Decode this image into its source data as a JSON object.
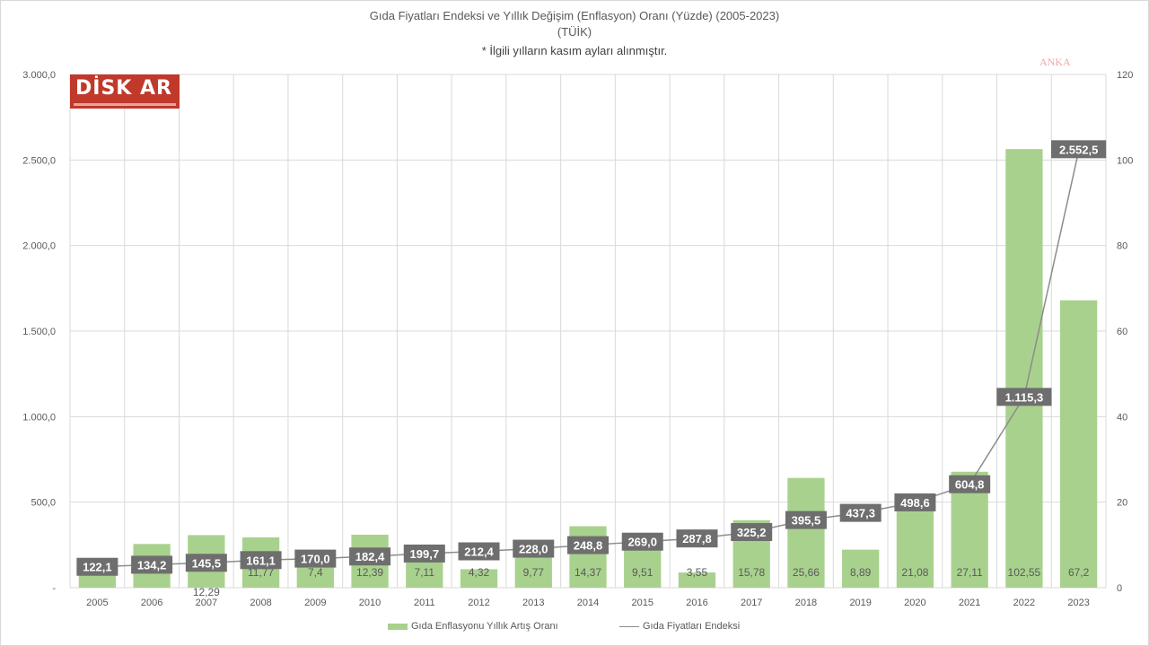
{
  "header": {
    "title": "Gıda Fiyatları Endeksi ve Yıllık Değişim (Enflasyon) Oranı (Yüzde) (2005-2023)",
    "source": "(TÜİK)",
    "note": "* İlgili yılların kasım ayları alınmıştır."
  },
  "logo": {
    "text": "DİSK AR"
  },
  "watermark": {
    "text": "ANKA"
  },
  "legend": {
    "bar_label": "Gıda Enflasyonu Yıllık Artış Oranı",
    "line_label": "Gıda Fiyatları Endeksi"
  },
  "colors": {
    "bar": "#a9d18e",
    "line": "#8c8c8c",
    "label_box": "#6e6e6e",
    "label_text": "#ffffff",
    "grid": "#d9d9d9"
  },
  "chart_data": {
    "type": "bar",
    "categories": [
      "2005",
      "2006",
      "2007",
      "2008",
      "2009",
      "2010",
      "2011",
      "2012",
      "2013",
      "2014",
      "2015",
      "2016",
      "2017",
      "2018",
      "2019",
      "2020",
      "2021",
      "2022",
      "2023"
    ],
    "series": [
      {
        "name": "Gıda Enflasyonu Yıllık Artış Oranı",
        "type": "bar",
        "axis": "right",
        "values": [
          5.07,
          10.22,
          12.29,
          11.77,
          7.4,
          12.39,
          7.11,
          4.32,
          9.77,
          14.37,
          9.51,
          3.55,
          15.78,
          25.66,
          8.89,
          21.08,
          27.11,
          102.55,
          67.2
        ],
        "labels": [
          "5,07",
          "10,22",
          "12,29",
          "11,77",
          "7,4",
          "12,39",
          "7,11",
          "4,32",
          "9,77",
          "14,37",
          "9,51",
          "3,55",
          "15,78",
          "25,66",
          "8,89",
          "21,08",
          "27,11",
          "102,55",
          "67,2"
        ]
      },
      {
        "name": "Gıda Fiyatları Endeksi",
        "type": "line",
        "axis": "left",
        "values": [
          122.1,
          134.2,
          145.5,
          161.1,
          170.0,
          182.4,
          199.7,
          212.4,
          228.0,
          248.8,
          269.0,
          287.8,
          325.2,
          395.5,
          437.3,
          498.6,
          604.8,
          1115.3,
          2552.5
        ],
        "labels": [
          "122,1",
          "134,2",
          "145,5",
          "161,1",
          "170,0",
          "182,4",
          "199,7",
          "212,4",
          "228,0",
          "248,8",
          "269,0",
          "287,8",
          "325,2",
          "395,5",
          "437,3",
          "498,6",
          "604,8",
          "1.115,3",
          "2.552,5"
        ]
      }
    ],
    "y_left": {
      "lim": [
        0,
        3000
      ],
      "ticks": [
        0,
        500,
        1000,
        1500,
        2000,
        2500,
        3000
      ],
      "tick_labels": [
        "-",
        "500,0",
        "1.000,0",
        "1.500,0",
        "2.000,0",
        "2.500,0",
        "3.000,0"
      ]
    },
    "y_right": {
      "lim": [
        0,
        120
      ],
      "ticks": [
        0,
        20,
        40,
        60,
        80,
        100,
        120
      ],
      "tick_labels": [
        "0",
        "20",
        "40",
        "60",
        "80",
        "100",
        "120"
      ]
    },
    "grid": true,
    "legend_position": "bottom"
  }
}
